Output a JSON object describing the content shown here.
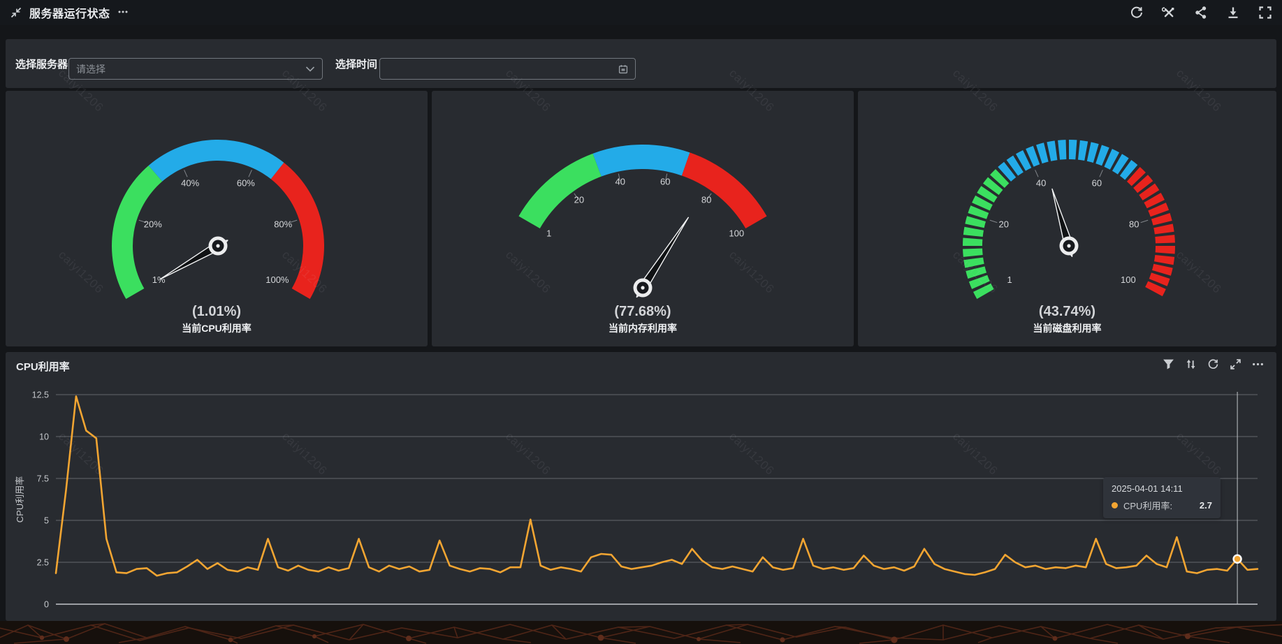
{
  "header": {
    "title": "服务器运行状态",
    "icons": [
      "compress-arrows",
      "ellipsis",
      "refresh",
      "tools",
      "share",
      "download",
      "fullscreen"
    ]
  },
  "filters": {
    "server_label": "选择服务器",
    "server_placeholder": "请选择",
    "time_label": "选择时间",
    "time_value": "",
    "icons": [
      "chevron-down",
      "calendar"
    ]
  },
  "colors": {
    "zone_green": "#3BDF5F",
    "zone_blue": "#23ABE8",
    "zone_red": "#E8231D",
    "line_orange": "#F2A532",
    "panel_bg": "#282B30",
    "grid_line": "#63676D",
    "axis_line": "#C2C5C9"
  },
  "gauges": [
    {
      "name": "cpu",
      "display": "(1.01%)",
      "caption": "当前CPU利用率",
      "value": 1.01,
      "min": 1,
      "max": 100,
      "tick_labels": [
        "1%",
        "20%",
        "40%",
        "60%",
        "80%",
        "100%"
      ],
      "zone_stops": [
        0.33,
        0.66,
        1
      ],
      "band_style": "solid"
    },
    {
      "name": "memory",
      "display": "(77.68%)",
      "caption": "当前内存利用率",
      "value": 77.68,
      "min": 1,
      "max": 100,
      "tick_labels": [
        "1",
        "20",
        "40",
        "60",
        "80",
        "100"
      ],
      "zone_stops": [
        0.33,
        0.66,
        1
      ],
      "band_style": "solid"
    },
    {
      "name": "disk",
      "display": "(43.74%)",
      "caption": "当前磁盘利用率",
      "value": 43.74,
      "min": 1,
      "max": 100,
      "tick_labels": [
        "1",
        "20",
        "40",
        "60",
        "80",
        "100"
      ],
      "zone_stops": [
        0.33,
        0.66,
        1
      ],
      "band_style": "segmented"
    }
  ],
  "chart_panel": {
    "title": "CPU利用率",
    "icons": [
      "filter",
      "sort-vertical",
      "refresh",
      "expand",
      "ellipsis"
    ]
  },
  "tooltip": {
    "date": "2025-04-01 14:11",
    "series_label": "CPU利用率:",
    "value": "2.7"
  },
  "chart_data": {
    "type": "line",
    "title": "CPU利用率",
    "ylabel": "CPU利用率",
    "ylim": [
      0,
      12.5
    ],
    "y_ticks": [
      0,
      2.5,
      5,
      7.5,
      10,
      12.5
    ],
    "x_axis": {
      "labels_visible": false,
      "kind": "time"
    },
    "grid": true,
    "legend": false,
    "series": [
      {
        "name": "CPU利用率",
        "color": "#F2A532",
        "values": [
          1.85,
          6.8,
          12.4,
          10.35,
          9.9,
          3.9,
          1.9,
          1.85,
          2.1,
          2.15,
          1.7,
          1.85,
          1.9,
          2.25,
          2.65,
          2.1,
          2.45,
          2.05,
          1.95,
          2.2,
          2.05,
          3.9,
          2.2,
          2.0,
          2.3,
          2.05,
          1.95,
          2.2,
          2.0,
          2.15,
          3.9,
          2.2,
          1.95,
          2.3,
          2.1,
          2.25,
          1.95,
          2.05,
          3.8,
          2.3,
          2.1,
          1.95,
          2.15,
          2.1,
          1.9,
          2.2,
          2.2,
          5.05,
          2.3,
          2.05,
          2.2,
          2.1,
          1.95,
          2.8,
          3.0,
          2.95,
          2.25,
          2.1,
          2.2,
          2.3,
          2.5,
          2.65,
          2.4,
          3.3,
          2.6,
          2.2,
          2.1,
          2.25,
          2.1,
          1.95,
          2.8,
          2.2,
          2.05,
          2.15,
          3.9,
          2.3,
          2.1,
          2.2,
          2.05,
          2.15,
          2.9,
          2.3,
          2.1,
          2.2,
          2.0,
          2.25,
          3.3,
          2.4,
          2.1,
          1.95,
          1.8,
          1.75,
          1.9,
          2.1,
          2.95,
          2.5,
          2.2,
          2.3,
          2.1,
          2.2,
          2.15,
          2.3,
          2.2,
          3.9,
          2.4,
          2.15,
          2.2,
          2.3,
          2.9,
          2.4,
          2.2,
          4.0,
          1.95,
          1.85,
          2.05,
          2.1,
          2.0,
          2.7,
          2.05,
          2.1
        ]
      }
    ],
    "highlight": {
      "index": 117,
      "time": "2025-04-01 14:11",
      "value": 2.7
    }
  },
  "watermark": "caiyi1206"
}
